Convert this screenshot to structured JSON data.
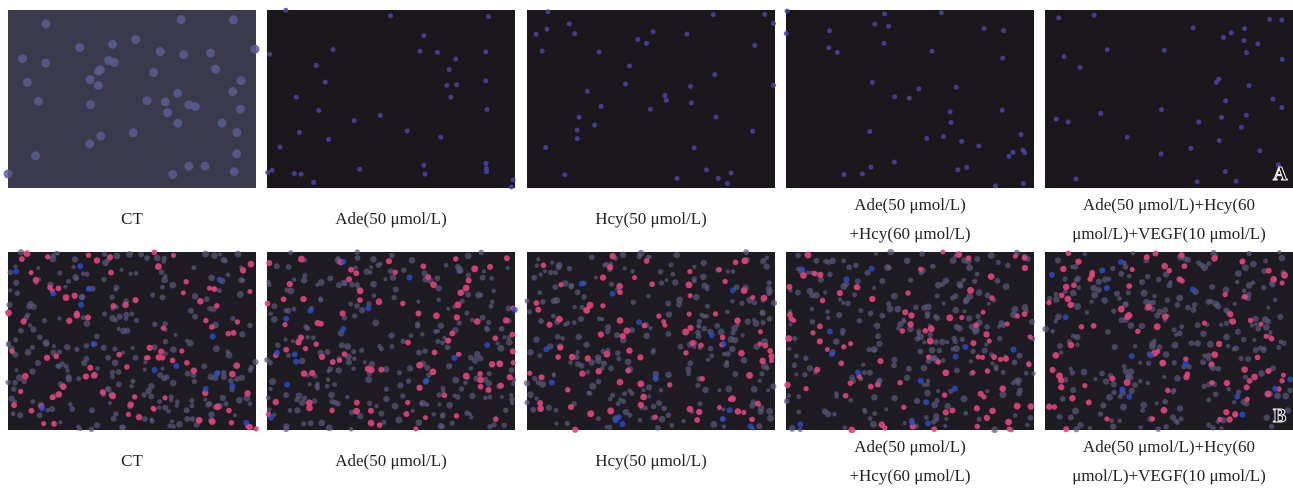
{
  "rows": [
    {
      "label": "A",
      "captions": [
        [
          "CT"
        ],
        [
          "Ade(50 μmol/L)"
        ],
        [
          "Hcy(50 μmol/L)"
        ],
        [
          "Ade(50 μmol/L)",
          "+Hcy(60 μmol/L)"
        ],
        [
          "Ade(50 μmol/L)+Hcy(60",
          "μmol/L)+VEGF(10 μmol/L)"
        ]
      ]
    },
    {
      "label": "B",
      "captions": [
        [
          "CT"
        ],
        [
          "Ade(50 μmol/L)"
        ],
        [
          "Hcy(50 μmol/L)"
        ],
        [
          "Ade(50 μmol/L)",
          "+Hcy(60 μmol/L)"
        ],
        [
          "Ade(50 μmol/L)+Hcy(60",
          "μmol/L)+VEGF(10 μmol/L)"
        ]
      ]
    }
  ]
}
